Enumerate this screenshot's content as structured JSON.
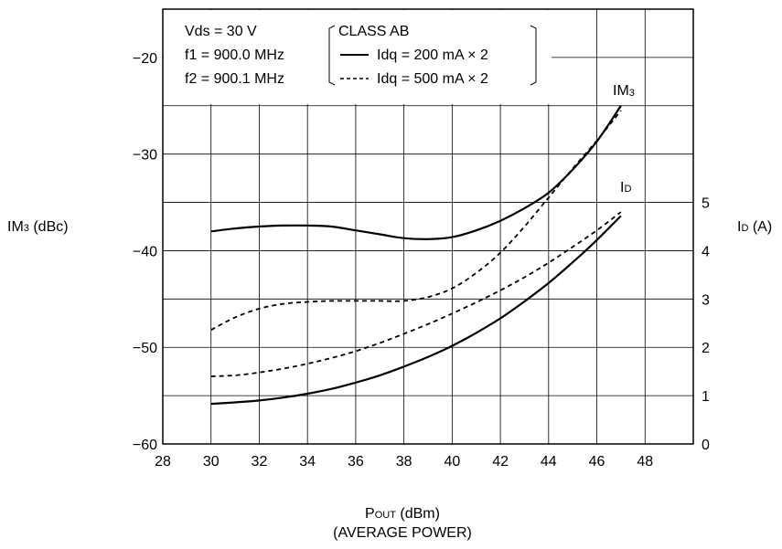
{
  "chart_data": {
    "type": "line",
    "x_axis": {
      "label_main": "P",
      "label_sub": "OUT",
      "label_rest": " (dBm)",
      "label_line2": "(AVERAGE POWER)",
      "range": [
        28,
        50
      ],
      "ticks": [
        28,
        30,
        32,
        34,
        36,
        38,
        40,
        42,
        44,
        46,
        48
      ],
      "tick_labels": [
        "28",
        "30",
        "32",
        "34",
        "36",
        "38",
        "40",
        "42",
        "44",
        "46",
        "48"
      ]
    },
    "y_left": {
      "label_main": "IM",
      "label_sub": "3",
      "label_rest": " (dBc)",
      "range": [
        -60,
        -15
      ],
      "ticks": [
        -60,
        -50,
        -40,
        -30,
        -20
      ],
      "tick_labels": [
        "−60",
        "−50",
        "−40",
        "−30",
        "−20"
      ]
    },
    "y_right": {
      "label_main": "I",
      "label_sub": "D",
      "label_rest": " (A)",
      "range": [
        0,
        5
      ],
      "ticks": [
        0,
        1,
        2,
        3,
        4,
        5
      ],
      "tick_labels": [
        "0",
        "1",
        "2",
        "3",
        "4",
        "5"
      ]
    },
    "grid": true,
    "legend": {
      "placement": "top-left",
      "conditions": [
        "Vds = 30 V",
        "f1 = 900.0 MHz",
        "f2 = 900.1 MHz"
      ],
      "class_label": "CLASS AB",
      "entries": [
        {
          "label": "Idq = 200 mA × 2",
          "style": "solid"
        },
        {
          "label": "Idq = 500 mA × 2",
          "style": "dashed"
        }
      ]
    },
    "annotations": [
      {
        "text_main": "IM",
        "text_sub": "3",
        "x": 46.7,
        "y_left": -23.3
      },
      {
        "text_main": "I",
        "text_sub": "D",
        "x": 46.6,
        "y_left": -33.5
      }
    ],
    "series": [
      {
        "group": "IM3",
        "style": "solid",
        "axis": "left",
        "x": [
          30,
          31,
          32,
          33,
          34,
          35,
          36,
          37,
          38,
          39,
          40,
          41,
          42,
          43,
          44,
          45,
          46,
          47
        ],
        "y": [
          -38.0,
          -37.7,
          -37.5,
          -37.4,
          -37.4,
          -37.5,
          -37.9,
          -38.3,
          -38.7,
          -38.8,
          -38.6,
          -37.9,
          -36.9,
          -35.6,
          -34.0,
          -31.6,
          -28.7,
          -25.0
        ]
      },
      {
        "group": "IM3",
        "style": "dashed",
        "axis": "left",
        "x": [
          30,
          31,
          32,
          33,
          34,
          35,
          36,
          37,
          38,
          39,
          40,
          41,
          42,
          43,
          44,
          45,
          46,
          47
        ],
        "y": [
          -48.2,
          -46.9,
          -46.0,
          -45.5,
          -45.3,
          -45.2,
          -45.2,
          -45.2,
          -45.2,
          -44.8,
          -43.9,
          -42.3,
          -40.2,
          -37.5,
          -34.5,
          -31.5,
          -28.6,
          -25.5
        ]
      },
      {
        "group": "ID",
        "style": "dashed",
        "axis": "right",
        "x": [
          30,
          31,
          32,
          33,
          34,
          35,
          36,
          37,
          38,
          39,
          40,
          41,
          42,
          43,
          44,
          45,
          46,
          47
        ],
        "y": [
          1.4,
          1.42,
          1.48,
          1.56,
          1.66,
          1.78,
          1.92,
          2.09,
          2.28,
          2.48,
          2.7,
          2.93,
          3.18,
          3.45,
          3.75,
          4.08,
          4.42,
          4.8
        ]
      },
      {
        "group": "ID",
        "style": "solid",
        "axis": "right",
        "x": [
          30,
          31,
          32,
          33,
          34,
          35,
          36,
          37,
          38,
          39,
          40,
          41,
          42,
          43,
          44,
          45,
          46,
          47
        ],
        "y": [
          0.83,
          0.86,
          0.9,
          0.96,
          1.04,
          1.14,
          1.27,
          1.42,
          1.6,
          1.8,
          2.03,
          2.3,
          2.6,
          2.95,
          3.33,
          3.76,
          4.22,
          4.72
        ]
      }
    ]
  }
}
